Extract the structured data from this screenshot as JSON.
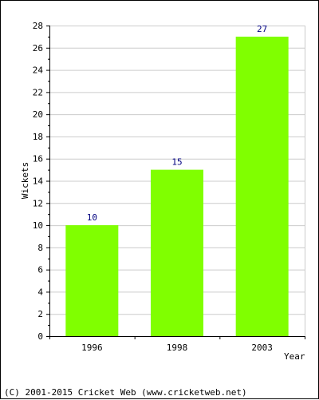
{
  "chart_data": {
    "type": "bar",
    "categories": [
      "1996",
      "1998",
      "2003"
    ],
    "values": [
      10,
      15,
      27
    ],
    "data_labels": [
      "10",
      "15",
      "27"
    ],
    "xlabel": "Year",
    "ylabel": "Wickets",
    "ylim": [
      0,
      28
    ],
    "y_ticks": [
      "0",
      "2",
      "4",
      "6",
      "8",
      "10",
      "12",
      "14",
      "16",
      "18",
      "20",
      "22",
      "24",
      "26",
      "28"
    ],
    "grid": true,
    "colors": {
      "bar": "#80ff00",
      "data_label": "#000080",
      "grid": "#cccccc",
      "axis": "#000000"
    }
  },
  "footer": {
    "copyright": "(C) 2001-2015 Cricket Web (www.cricketweb.net)"
  }
}
